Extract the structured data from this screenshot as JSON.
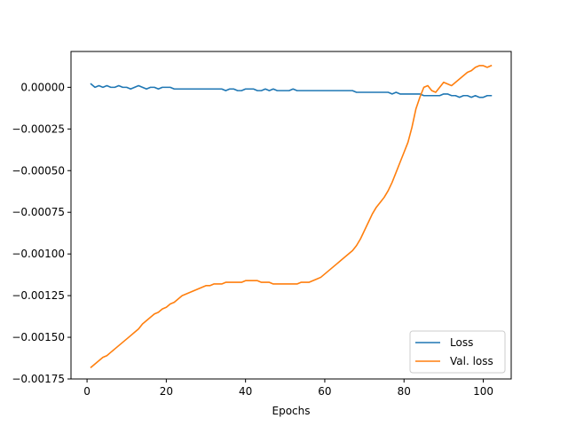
{
  "chart_data": {
    "type": "line",
    "title": "",
    "xlabel": "Epochs",
    "ylabel": "",
    "xlim": [
      -4.05,
      107.05
    ],
    "ylim": [
      -0.00175,
      0.000215
    ],
    "x_ticks": [
      0,
      20,
      40,
      60,
      80,
      100
    ],
    "x_tick_labels": [
      "0",
      "20",
      "40",
      "60",
      "80",
      "100"
    ],
    "y_ticks": [
      0.0,
      -0.00025,
      -0.0005,
      -0.00075,
      -0.001,
      -0.00125,
      -0.0015,
      -0.00175
    ],
    "y_tick_labels": [
      "0.00000",
      "−0.00025",
      "−0.00050",
      "−0.00075",
      "−0.00100",
      "−0.00125",
      "−0.00150",
      "−0.00175"
    ],
    "grid": false,
    "legend_position": "lower-right",
    "x": [
      1,
      2,
      3,
      4,
      5,
      6,
      7,
      8,
      9,
      10,
      11,
      12,
      13,
      14,
      15,
      16,
      17,
      18,
      19,
      20,
      21,
      22,
      23,
      24,
      25,
      26,
      27,
      28,
      29,
      30,
      31,
      32,
      33,
      34,
      35,
      36,
      37,
      38,
      39,
      40,
      41,
      42,
      43,
      44,
      45,
      46,
      47,
      48,
      49,
      50,
      51,
      52,
      53,
      54,
      55,
      56,
      57,
      58,
      59,
      60,
      61,
      62,
      63,
      64,
      65,
      66,
      67,
      68,
      69,
      70,
      71,
      72,
      73,
      74,
      75,
      76,
      77,
      78,
      79,
      80,
      81,
      82,
      83,
      84,
      85,
      86,
      87,
      88,
      89,
      90,
      91,
      92,
      93,
      94,
      95,
      96,
      97,
      98,
      99,
      100,
      101,
      102
    ],
    "series": [
      {
        "name": "Loss",
        "color": "#1f77b4",
        "values": [
          2e-05,
          0.0,
          1e-05,
          0.0,
          1e-05,
          0.0,
          0.0,
          1e-05,
          0.0,
          0.0,
          -1e-05,
          0.0,
          1e-05,
          0.0,
          -1e-05,
          0.0,
          0.0,
          -1e-05,
          0.0,
          0.0,
          0.0,
          -1e-05,
          -1e-05,
          -1e-05,
          -1e-05,
          -1e-05,
          -1e-05,
          -1e-05,
          -1e-05,
          -1e-05,
          -1e-05,
          -1e-05,
          -1e-05,
          -1e-05,
          -2e-05,
          -1e-05,
          -1e-05,
          -2e-05,
          -2e-05,
          -1e-05,
          -1e-05,
          -1e-05,
          -2e-05,
          -2e-05,
          -1e-05,
          -2e-05,
          -1e-05,
          -2e-05,
          -2e-05,
          -2e-05,
          -2e-05,
          -1e-05,
          -2e-05,
          -2e-05,
          -2e-05,
          -2e-05,
          -2e-05,
          -2e-05,
          -2e-05,
          -2e-05,
          -2e-05,
          -2e-05,
          -2e-05,
          -2e-05,
          -2e-05,
          -2e-05,
          -2e-05,
          -3e-05,
          -3e-05,
          -3e-05,
          -3e-05,
          -3e-05,
          -3e-05,
          -3e-05,
          -3e-05,
          -3e-05,
          -4e-05,
          -3e-05,
          -4e-05,
          -4e-05,
          -4e-05,
          -4e-05,
          -4e-05,
          -4e-05,
          -5e-05,
          -5e-05,
          -5e-05,
          -5e-05,
          -5e-05,
          -4e-05,
          -4e-05,
          -5e-05,
          -5e-05,
          -6e-05,
          -5e-05,
          -5e-05,
          -6e-05,
          -5e-05,
          -6e-05,
          -6e-05,
          -5e-05,
          -5e-05
        ]
      },
      {
        "name": "Val. loss",
        "color": "#ff7f0e",
        "values": [
          -0.00168,
          -0.00166,
          -0.00164,
          -0.00162,
          -0.00161,
          -0.00159,
          -0.00157,
          -0.00155,
          -0.00153,
          -0.00151,
          -0.00149,
          -0.00147,
          -0.00145,
          -0.00142,
          -0.0014,
          -0.00138,
          -0.00136,
          -0.00135,
          -0.00133,
          -0.00132,
          -0.0013,
          -0.00129,
          -0.00127,
          -0.00125,
          -0.00124,
          -0.00123,
          -0.00122,
          -0.00121,
          -0.0012,
          -0.00119,
          -0.00119,
          -0.00118,
          -0.00118,
          -0.00118,
          -0.00117,
          -0.00117,
          -0.00117,
          -0.00117,
          -0.00117,
          -0.00116,
          -0.00116,
          -0.00116,
          -0.00116,
          -0.00117,
          -0.00117,
          -0.00117,
          -0.00118,
          -0.00118,
          -0.00118,
          -0.00118,
          -0.00118,
          -0.00118,
          -0.00118,
          -0.00117,
          -0.00117,
          -0.00117,
          -0.00116,
          -0.00115,
          -0.00114,
          -0.00112,
          -0.0011,
          -0.00108,
          -0.00106,
          -0.00104,
          -0.00102,
          -0.001,
          -0.00098,
          -0.00095,
          -0.00091,
          -0.00086,
          -0.00081,
          -0.00076,
          -0.00072,
          -0.00069,
          -0.00066,
          -0.00062,
          -0.00057,
          -0.00051,
          -0.00045,
          -0.00039,
          -0.00033,
          -0.00024,
          -0.00013,
          -6e-05,
          0.0,
          1e-05,
          -2e-05,
          -3e-05,
          0.0,
          3e-05,
          2e-05,
          1e-05,
          3e-05,
          5e-05,
          7e-05,
          9e-05,
          0.0001,
          0.00012,
          0.00013,
          0.00013,
          0.00012,
          0.00013
        ]
      }
    ]
  }
}
